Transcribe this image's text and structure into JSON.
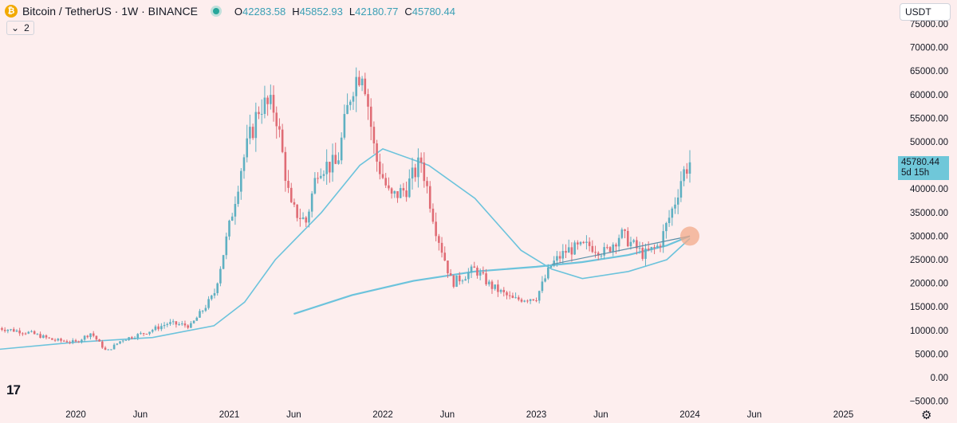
{
  "header": {
    "coin_icon": "bitcoin-icon",
    "symbol": "Bitcoin / TetherUS · 1W · BINANCE",
    "open_label": "O",
    "open_value": "42283.58",
    "high_label": "H",
    "high_value": "45852.93",
    "low_label": "L",
    "low_value": "42180.77",
    "close_label": "C",
    "close_value": "45780.44"
  },
  "indicator_toggle": {
    "icon": "chevron-down-icon",
    "count": "2"
  },
  "currency_select": {
    "value": "USDT"
  },
  "price_label": {
    "price": "45780.44",
    "countdown": "5d 15h"
  },
  "settings_icon": "gear-icon",
  "colors": {
    "up": "#5fb0c2",
    "down": "#e06c75",
    "ma": "#6cc3dc",
    "trend": "#5a8fa8",
    "background": "#fdeeee"
  },
  "chart_data": {
    "type": "candlestick",
    "y_axis": {
      "ticks": [
        "75000.00",
        "70000.00",
        "65000.00",
        "60000.00",
        "55000.00",
        "50000.00",
        "45000.00",
        "40000.00",
        "35000.00",
        "30000.00",
        "25000.00",
        "20000.00",
        "15000.00",
        "10000.00",
        "5000.00",
        "0.00",
        "−5000.00"
      ],
      "range": [
        -5000,
        75000
      ]
    },
    "x_axis": {
      "ticks": [
        "2020",
        "Jun",
        "2021",
        "Jun",
        "2022",
        "Jun",
        "2023",
        "Jun",
        "2024",
        "Jun",
        "2025"
      ]
    },
    "price_path": [
      [
        2019.5,
        10500
      ],
      [
        2019.7,
        9500
      ],
      [
        2019.85,
        8000
      ],
      [
        2020.0,
        7500
      ],
      [
        2020.1,
        9500
      ],
      [
        2020.2,
        5500
      ],
      [
        2020.3,
        8000
      ],
      [
        2020.45,
        9500
      ],
      [
        2020.6,
        11500
      ],
      [
        2020.75,
        11000
      ],
      [
        2020.9,
        17500
      ],
      [
        2021.0,
        32000
      ],
      [
        2021.08,
        45000
      ],
      [
        2021.2,
        58000
      ],
      [
        2021.3,
        57000
      ],
      [
        2021.4,
        36000
      ],
      [
        2021.5,
        33000
      ],
      [
        2021.58,
        45000
      ],
      [
        2021.7,
        45000
      ],
      [
        2021.8,
        62000
      ],
      [
        2021.87,
        66000
      ],
      [
        2021.95,
        47000
      ],
      [
        2022.05,
        38000
      ],
      [
        2022.15,
        40000
      ],
      [
        2022.25,
        46000
      ],
      [
        2022.35,
        31000
      ],
      [
        2022.45,
        20000
      ],
      [
        2022.6,
        23000
      ],
      [
        2022.7,
        19500
      ],
      [
        2022.85,
        16500
      ],
      [
        2023.0,
        17000
      ],
      [
        2023.1,
        24000
      ],
      [
        2023.2,
        27000
      ],
      [
        2023.35,
        28000
      ],
      [
        2023.45,
        26500
      ],
      [
        2023.55,
        30500
      ],
      [
        2023.7,
        26000
      ],
      [
        2023.8,
        28000
      ],
      [
        2023.9,
        37000
      ],
      [
        2023.95,
        43000
      ],
      [
        2024.0,
        45780
      ]
    ],
    "ma_long": [
      [
        2021.42,
        13500
      ],
      [
        2021.8,
        17500
      ],
      [
        2022.2,
        20500
      ],
      [
        2022.6,
        22500
      ],
      [
        2023.0,
        23500
      ],
      [
        2023.3,
        24500
      ],
      [
        2023.6,
        26000
      ],
      [
        2023.85,
        28000
      ],
      [
        2024.0,
        30000
      ]
    ],
    "ma_short": [
      [
        2019.5,
        6000
      ],
      [
        2020.0,
        7500
      ],
      [
        2020.5,
        8500
      ],
      [
        2020.9,
        11000
      ],
      [
        2021.1,
        16000
      ],
      [
        2021.3,
        25000
      ],
      [
        2021.6,
        35000
      ],
      [
        2021.85,
        45000
      ],
      [
        2022.0,
        48500
      ],
      [
        2022.3,
        45000
      ],
      [
        2022.6,
        38000
      ],
      [
        2022.9,
        27000
      ],
      [
        2023.1,
        23000
      ],
      [
        2023.3,
        21000
      ],
      [
        2023.6,
        22500
      ],
      [
        2023.85,
        25000
      ],
      [
        2024.0,
        29500
      ]
    ],
    "trend_line": [
      [
        2023.1,
        24000
      ],
      [
        2024.0,
        30000
      ]
    ],
    "highlight_point": [
      2024.0,
      30000
    ]
  }
}
